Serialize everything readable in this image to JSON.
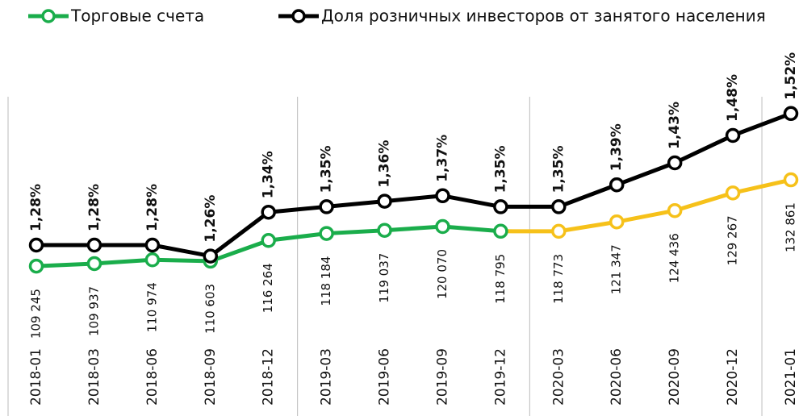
{
  "chart_data": {
    "type": "line",
    "categories": [
      "2018-01",
      "2018-03",
      "2018-06",
      "2018-09",
      "2018-12",
      "2019-03",
      "2019-06",
      "2019-09",
      "2019-12",
      "2020-03",
      "2020-06",
      "2020-09",
      "2020-12",
      "2021-01"
    ],
    "legend": "top",
    "ylim": [
      85000,
      160000
    ],
    "y2lim": [
      1.08,
      1.58
    ],
    "series": [
      {
        "name": "Торговые счета",
        "color": "#1aad4b",
        "colors": [
          "#1aad4b",
          "#1aad4b",
          "#1aad4b",
          "#1aad4b",
          "#1aad4b",
          "#1aad4b",
          "#1aad4b",
          "#1aad4b",
          "#1aad4b",
          "#f6c11a",
          "#f6c11a",
          "#f6c11a",
          "#f6c11a",
          "#f6c11a"
        ],
        "values": [
          109245,
          109937,
          110974,
          110603,
          116264,
          118184,
          119037,
          120070,
          118795,
          118773,
          121347,
          124436,
          129267,
          132861
        ],
        "value_labels": [
          "109 245",
          "109 937",
          "110 974",
          "110 603",
          "116 264",
          "118 184",
          "119 037",
          "120 070",
          "118 795",
          "118 773",
          "121 347",
          "124 436",
          "129 267",
          "132 861"
        ]
      },
      {
        "name": "Доля розничных инвесторов от занятого населения",
        "color": "#000000",
        "axis": "y2",
        "values": [
          1.28,
          1.28,
          1.28,
          1.26,
          1.34,
          1.35,
          1.36,
          1.37,
          1.35,
          1.35,
          1.39,
          1.43,
          1.48,
          1.52
        ],
        "value_labels": [
          "1,28%",
          "1,28%",
          "1,28%",
          "1,26%",
          "1,34%",
          "1,35%",
          "1,36%",
          "1,37%",
          "1,35%",
          "1,35%",
          "1,39%",
          "1,43%",
          "1,48%",
          "1,52%"
        ]
      }
    ]
  }
}
